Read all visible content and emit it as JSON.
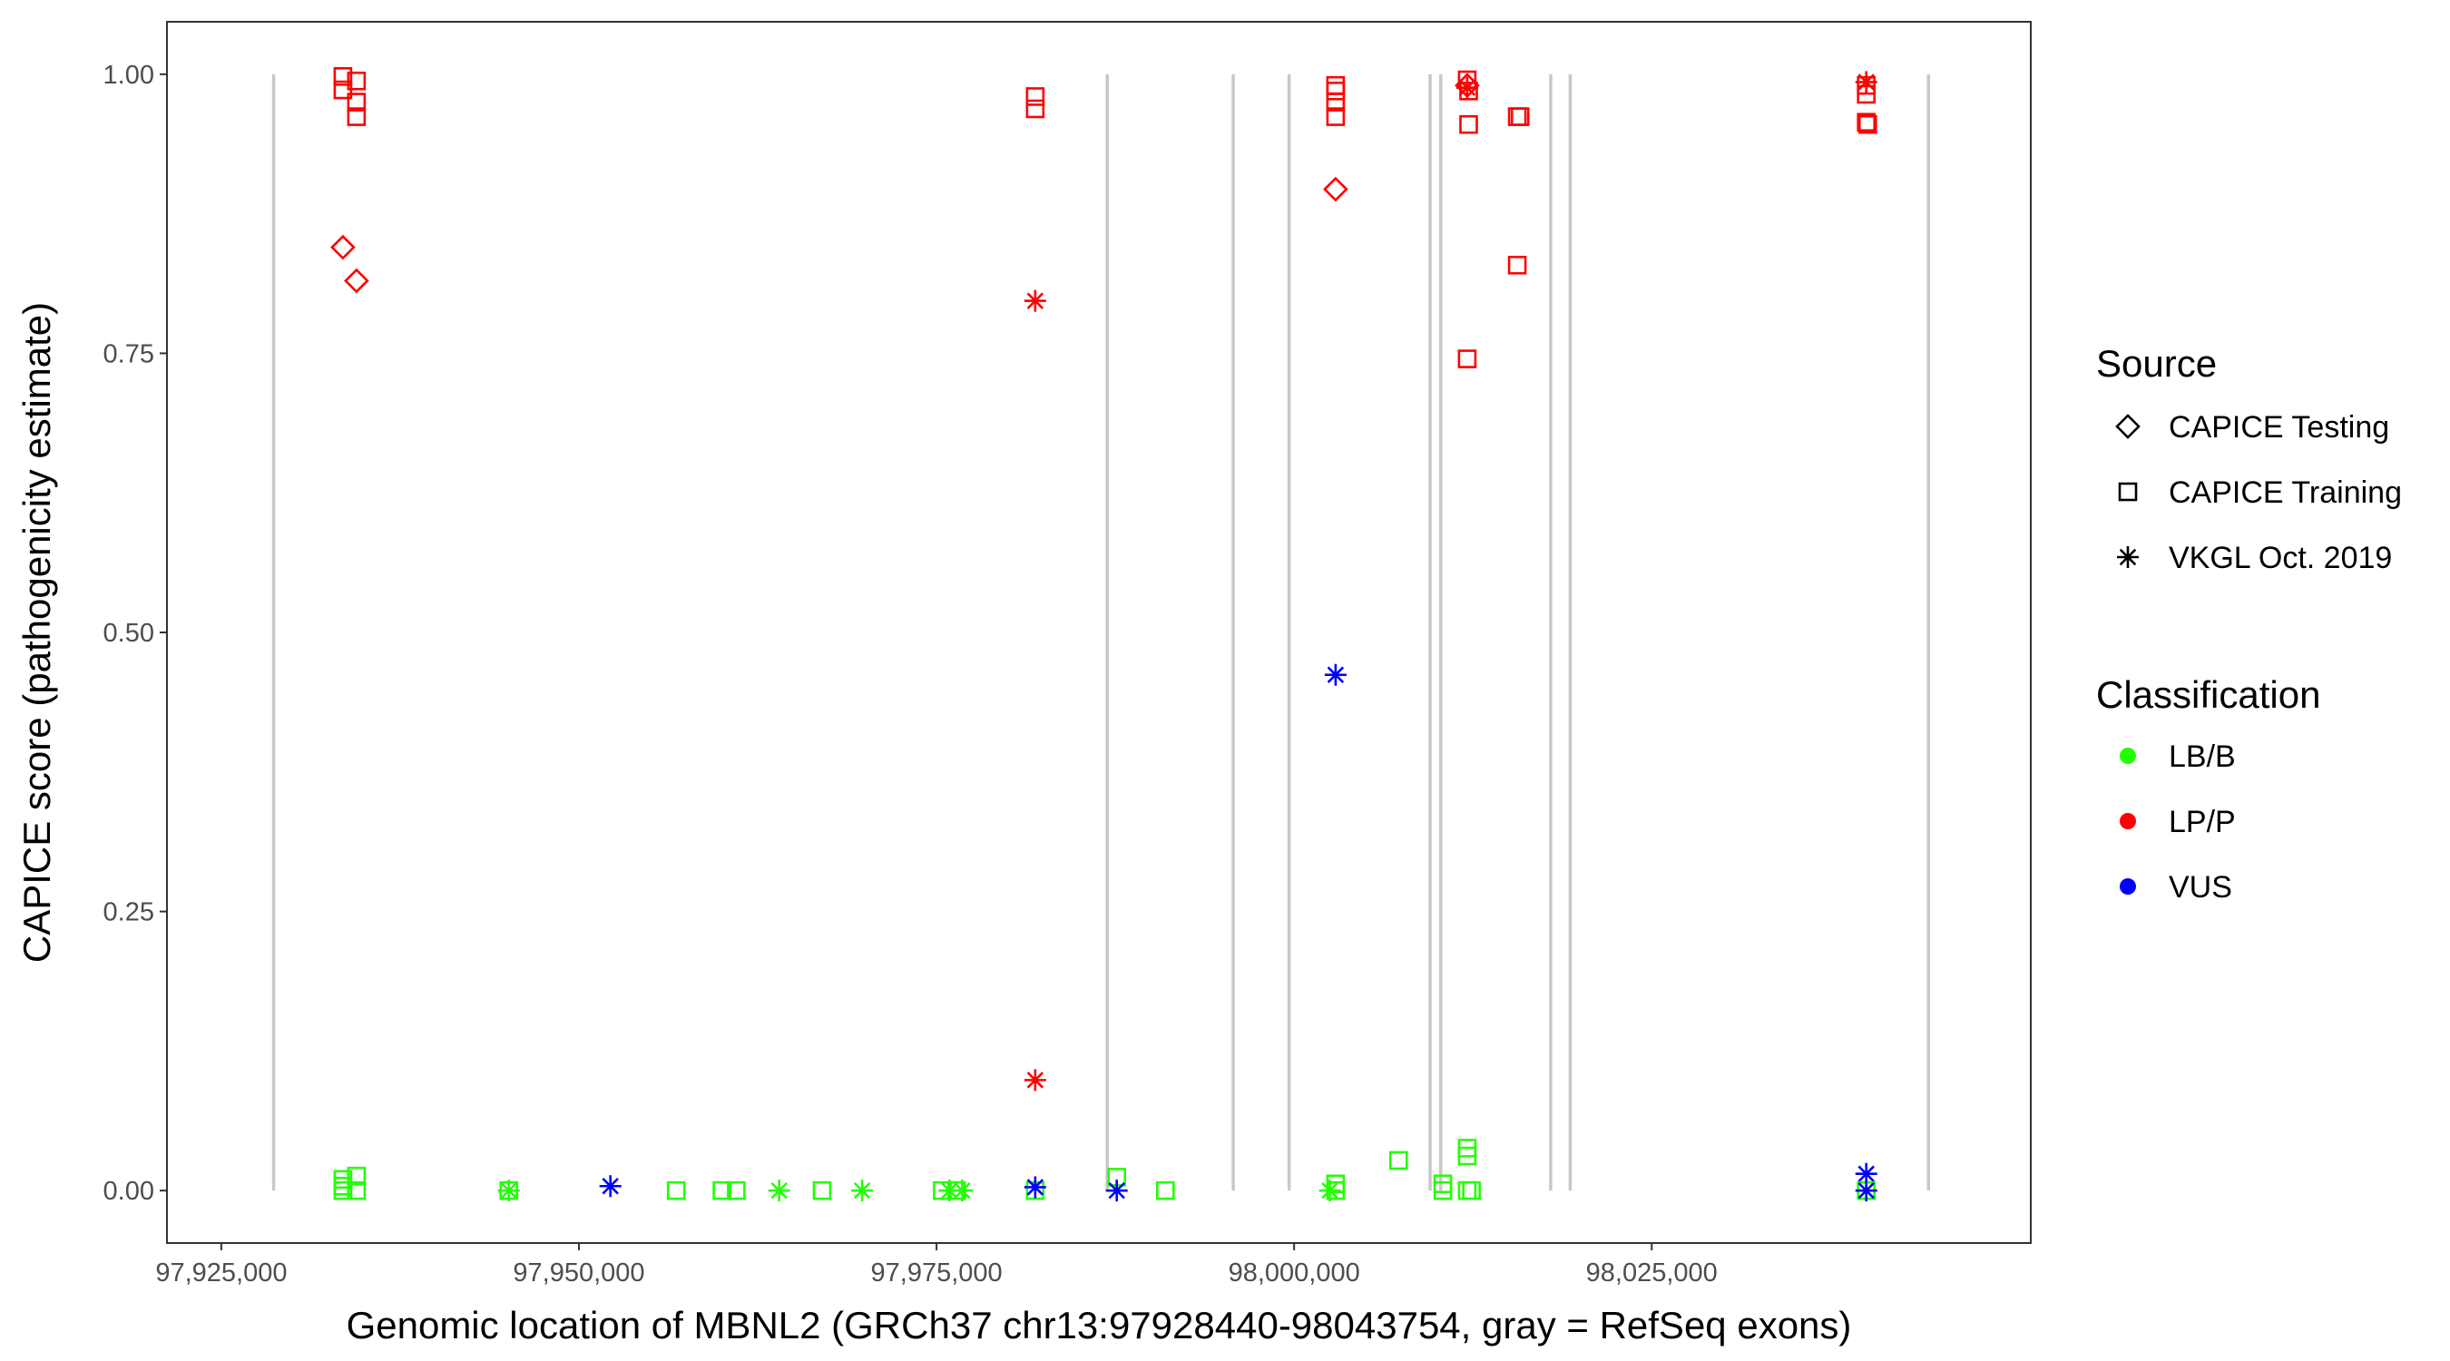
{
  "chart_data": {
    "type": "scatter",
    "title": "",
    "xlabel": "Genomic location of MBNL2 (GRCh37 chr13:97928440-98043754, gray = RefSeq exons)",
    "ylabel": "CAPICE score (pathogenicity estimate)",
    "xlim": [
      97921200,
      98051500
    ],
    "ylim": [
      -0.047,
      1.047
    ],
    "x_ticks": [
      97925000,
      97950000,
      97975000,
      98000000,
      98025000
    ],
    "x_tick_labels": [
      "97,925,000",
      "97,950,000",
      "97,975,000",
      "98,000,000",
      "98,025,000"
    ],
    "y_ticks": [
      0,
      0.25,
      0.5,
      0.75,
      1.0
    ],
    "y_tick_labels": [
      "0.00",
      "0.25",
      "0.50",
      "0.75",
      "1.00"
    ],
    "grid": false,
    "exon_positions": [
      97928658,
      97986938,
      97995742,
      97999648,
      98009506,
      98010250,
      98017938,
      98019302,
      98044350
    ],
    "exon_color": "#c8c8c8",
    "legend_placement": "right",
    "legends": {
      "source": {
        "title": "Source",
        "entries": [
          {
            "label": "CAPICE Testing",
            "shape": "diamond-open"
          },
          {
            "label": "CAPICE Training",
            "shape": "square-open"
          },
          {
            "label": "VKGL Oct. 2019",
            "shape": "asterisk"
          }
        ]
      },
      "classification": {
        "title": "Classification",
        "entries": [
          {
            "label": "LB/B",
            "color": "#22ff00"
          },
          {
            "label": "LP/P",
            "color": "#ff0000"
          },
          {
            "label": "VUS",
            "color": "#0000ff"
          }
        ]
      }
    },
    "point_fields": [
      "position",
      "score",
      "source",
      "classification"
    ],
    "points": [
      [
        97933500,
        0.998,
        "CAPICE Training",
        "LP/P"
      ],
      [
        97933500,
        0.986,
        "CAPICE Training",
        "LP/P"
      ],
      [
        97934450,
        0.994,
        "CAPICE Training",
        "LP/P"
      ],
      [
        97934450,
        0.975,
        "CAPICE Training",
        "LP/P"
      ],
      [
        97934450,
        0.962,
        "CAPICE Training",
        "LP/P"
      ],
      [
        97933500,
        0.845,
        "CAPICE Testing",
        "LP/P"
      ],
      [
        97934450,
        0.815,
        "CAPICE Testing",
        "LP/P"
      ],
      [
        97933500,
        0.01,
        "CAPICE Training",
        "LB/B"
      ],
      [
        97933500,
        0.004,
        "CAPICE Training",
        "LB/B"
      ],
      [
        97933500,
        0.0,
        "CAPICE Training",
        "LB/B"
      ],
      [
        97934450,
        0.013,
        "CAPICE Training",
        "LB/B"
      ],
      [
        97934450,
        0.0,
        "CAPICE Training",
        "LB/B"
      ],
      [
        97945100,
        0.0,
        "CAPICE Training",
        "LB/B"
      ],
      [
        97945100,
        0.0,
        "VKGL Oct. 2019",
        "LB/B"
      ],
      [
        97952200,
        0.004,
        "VKGL Oct. 2019",
        "VUS"
      ],
      [
        97956800,
        0.0,
        "CAPICE Training",
        "LB/B"
      ],
      [
        97960000,
        0.0,
        "CAPICE Training",
        "LB/B"
      ],
      [
        97961000,
        0.0,
        "CAPICE Training",
        "LB/B"
      ],
      [
        97964000,
        0.0,
        "VKGL Oct. 2019",
        "LB/B"
      ],
      [
        97967000,
        0.0,
        "CAPICE Training",
        "LB/B"
      ],
      [
        97969800,
        0.0,
        "VKGL Oct. 2019",
        "LB/B"
      ],
      [
        97975400,
        0.0,
        "CAPICE Training",
        "LB/B"
      ],
      [
        97975900,
        0.0,
        "VKGL Oct. 2019",
        "LB/B"
      ],
      [
        97976400,
        0.0,
        "CAPICE Training",
        "LB/B"
      ],
      [
        97976800,
        0.0,
        "VKGL Oct. 2019",
        "LB/B"
      ],
      [
        97981900,
        0.98,
        "CAPICE Training",
        "LP/P"
      ],
      [
        97981900,
        0.969,
        "CAPICE Training",
        "LP/P"
      ],
      [
        97981900,
        0.797,
        "VKGL Oct. 2019",
        "LP/P"
      ],
      [
        97981900,
        0.099,
        "VKGL Oct. 2019",
        "LP/P"
      ],
      [
        97981900,
        0.0,
        "CAPICE Training",
        "LB/B"
      ],
      [
        97981900,
        0.003,
        "VKGL Oct. 2019",
        "VUS"
      ],
      [
        97987600,
        0.012,
        "CAPICE Training",
        "LB/B"
      ],
      [
        97987600,
        0.0,
        "VKGL Oct. 2019",
        "VUS"
      ],
      [
        97991000,
        0.0,
        "CAPICE Training",
        "LB/B"
      ],
      [
        98002900,
        0.99,
        "CAPICE Training",
        "LP/P"
      ],
      [
        98002900,
        0.985,
        "CAPICE Training",
        "LP/P"
      ],
      [
        98002900,
        0.975,
        "CAPICE Training",
        "LP/P"
      ],
      [
        98002900,
        0.962,
        "CAPICE Training",
        "LP/P"
      ],
      [
        98002900,
        0.897,
        "CAPICE Testing",
        "LP/P"
      ],
      [
        98002900,
        0.462,
        "VKGL Oct. 2019",
        "VUS"
      ],
      [
        98002900,
        0.006,
        "CAPICE Training",
        "LB/B"
      ],
      [
        98002900,
        0.0,
        "CAPICE Training",
        "LB/B"
      ],
      [
        98002500,
        0.0,
        "VKGL Oct. 2019",
        "LB/B"
      ],
      [
        98007300,
        0.027,
        "CAPICE Training",
        "LB/B"
      ],
      [
        98010400,
        0.006,
        "CAPICE Training",
        "LB/B"
      ],
      [
        98010400,
        0.0,
        "CAPICE Training",
        "LB/B"
      ],
      [
        98012100,
        0.995,
        "CAPICE Training",
        "LP/P"
      ],
      [
        98012100,
        0.99,
        "CAPICE Testing",
        "LP/P"
      ],
      [
        98012100,
        0.988,
        "VKGL Oct. 2019",
        "LP/P"
      ],
      [
        98012200,
        0.985,
        "CAPICE Training",
        "LP/P"
      ],
      [
        98012200,
        0.955,
        "CAPICE Training",
        "LP/P"
      ],
      [
        98012100,
        0.745,
        "CAPICE Training",
        "LP/P"
      ],
      [
        98012100,
        0.038,
        "CAPICE Training",
        "LB/B"
      ],
      [
        98012100,
        0.031,
        "CAPICE Training",
        "LB/B"
      ],
      [
        98012100,
        0.0,
        "CAPICE Training",
        "LB/B"
      ],
      [
        98012400,
        0.0,
        "CAPICE Training",
        "LB/B"
      ],
      [
        98015600,
        0.962,
        "CAPICE Training",
        "LP/P"
      ],
      [
        98015800,
        0.962,
        "CAPICE Training",
        "LP/P"
      ],
      [
        98015600,
        0.829,
        "CAPICE Training",
        "LP/P"
      ],
      [
        98040000,
        0.993,
        "VKGL Oct. 2019",
        "LP/P"
      ],
      [
        98040000,
        0.99,
        "CAPICE Training",
        "LP/P"
      ],
      [
        98040000,
        0.982,
        "CAPICE Training",
        "LP/P"
      ],
      [
        98040000,
        0.957,
        "CAPICE Training",
        "LP/P"
      ],
      [
        98040100,
        0.955,
        "CAPICE Training",
        "LP/P"
      ],
      [
        98040000,
        0.015,
        "VKGL Oct. 2019",
        "VUS"
      ],
      [
        98040000,
        0.0,
        "CAPICE Training",
        "LB/B"
      ],
      [
        98040000,
        0.0,
        "VKGL Oct. 2019",
        "VUS"
      ]
    ]
  }
}
